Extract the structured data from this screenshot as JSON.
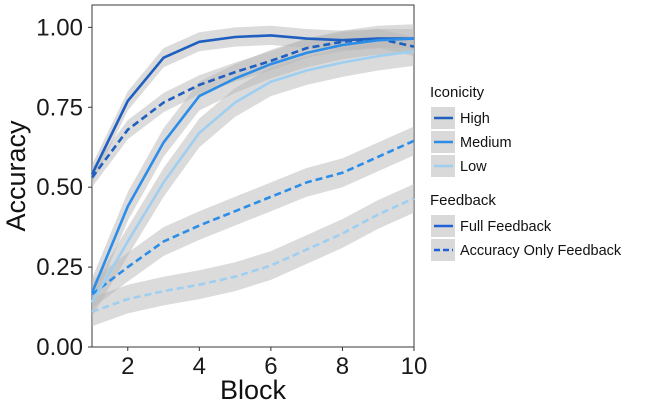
{
  "chart_data": {
    "type": "line",
    "xlabel": "Block",
    "ylabel": "Accuracy",
    "xlim": [
      1,
      10
    ],
    "ylim": [
      0,
      1.07
    ],
    "x_ticks": [
      2,
      4,
      6,
      8,
      10
    ],
    "y_ticks": [
      0.0,
      0.25,
      0.5,
      0.75,
      1.0
    ],
    "x_tick_labels": [
      "2",
      "4",
      "6",
      "8",
      "10"
    ],
    "y_tick_labels": [
      "0.00",
      "0.25",
      "0.50",
      "0.75",
      "1.00"
    ],
    "grid": false,
    "x": [
      1,
      2,
      3,
      4,
      5,
      6,
      7,
      8,
      9,
      10
    ],
    "series": [
      {
        "name": "High, Full Feedback",
        "iconicity": "High",
        "feedback": "Full Feedback",
        "color": "#1f5fc0",
        "dash": false,
        "values": [
          0.54,
          0.77,
          0.905,
          0.955,
          0.97,
          0.975,
          0.965,
          0.96,
          0.965,
          0.965
        ],
        "band": 0.03
      },
      {
        "name": "High, Accuracy Only Feedback",
        "iconicity": "High",
        "feedback": "Accuracy Only Feedback",
        "color": "#1f5fc0",
        "dash": true,
        "values": [
          0.53,
          0.68,
          0.765,
          0.82,
          0.86,
          0.895,
          0.935,
          0.955,
          0.965,
          0.94
        ],
        "band": 0.03
      },
      {
        "name": "Medium, Full Feedback",
        "iconicity": "Medium",
        "feedback": "Full Feedback",
        "color": "#2b8de8",
        "dash": false,
        "values": [
          0.17,
          0.44,
          0.64,
          0.785,
          0.84,
          0.885,
          0.92,
          0.945,
          0.96,
          0.965
        ],
        "band": 0.045
      },
      {
        "name": "Medium, Accuracy Only Feedback",
        "iconicity": "Medium",
        "feedback": "Accuracy Only Feedback",
        "color": "#2b8de8",
        "dash": true,
        "values": [
          0.165,
          0.25,
          0.33,
          0.38,
          0.425,
          0.47,
          0.515,
          0.545,
          0.595,
          0.645
        ],
        "band": 0.045
      },
      {
        "name": "Low, Full Feedback",
        "iconicity": "Low",
        "feedback": "Full Feedback",
        "color": "#9fcff0",
        "dash": false,
        "values": [
          0.14,
          0.33,
          0.515,
          0.67,
          0.765,
          0.83,
          0.865,
          0.89,
          0.91,
          0.925
        ],
        "band": 0.045
      },
      {
        "name": "Low, Accuracy Only Feedback",
        "iconicity": "Low",
        "feedback": "Accuracy Only Feedback",
        "color": "#9fcff0",
        "dash": true,
        "values": [
          0.11,
          0.15,
          0.175,
          0.195,
          0.22,
          0.255,
          0.305,
          0.355,
          0.415,
          0.465
        ],
        "band": 0.045
      }
    ],
    "legend": {
      "placement": "right",
      "groups": [
        {
          "title": "Iconicity",
          "items": [
            {
              "label": "High",
              "color": "#1f5fc0",
              "dash": false
            },
            {
              "label": "Medium",
              "color": "#2b8de8",
              "dash": false
            },
            {
              "label": "Low",
              "color": "#9fcff0",
              "dash": false
            }
          ]
        },
        {
          "title": "Feedback",
          "items": [
            {
              "label": "Full Feedback",
              "color": "#2060d8",
              "dash": false
            },
            {
              "label": "Accuracy Only Feedback",
              "color": "#2060d8",
              "dash": true
            }
          ]
        }
      ]
    },
    "colors": {
      "band": "#b7b7b7",
      "axis": "#333333",
      "legend_bg": "#d9d9d9"
    }
  }
}
